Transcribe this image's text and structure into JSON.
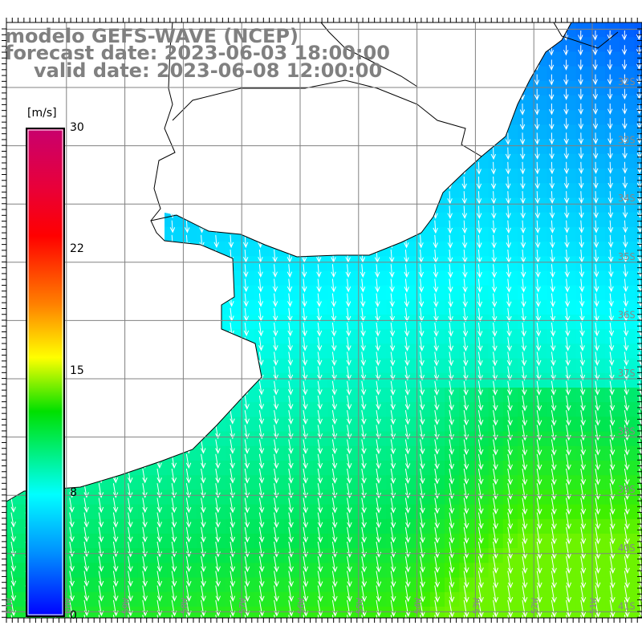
{
  "title": {
    "line1": "modelo GEFS-WAVE (NCEP)",
    "line2": "forecast date: 2023-06-03 18:00:00",
    "line3": "valid date: 2023-06-08 12:00:00"
  },
  "colorbar": {
    "unit": "[m/s]",
    "ticks": [
      "30",
      "22",
      "15",
      "8",
      "0"
    ],
    "colors": [
      "#c8006e",
      "#ff0000",
      "#ff8000",
      "#ffff00",
      "#00e000",
      "#00ffff",
      "#0000ff"
    ]
  },
  "axes": {
    "lat_labels": [
      "32S",
      "33S",
      "34S",
      "35S",
      "36S",
      "37S",
      "38S",
      "39S",
      "40S",
      "41S"
    ],
    "lon_labels": [
      "61W",
      "60W",
      "59W",
      "58W",
      "57W",
      "56W",
      "55W",
      "54W",
      "53W",
      "52W",
      "51W"
    ]
  },
  "field": {
    "variable": "wind speed",
    "land_color": "#ffffff",
    "arrow_color": "#ffffff"
  }
}
